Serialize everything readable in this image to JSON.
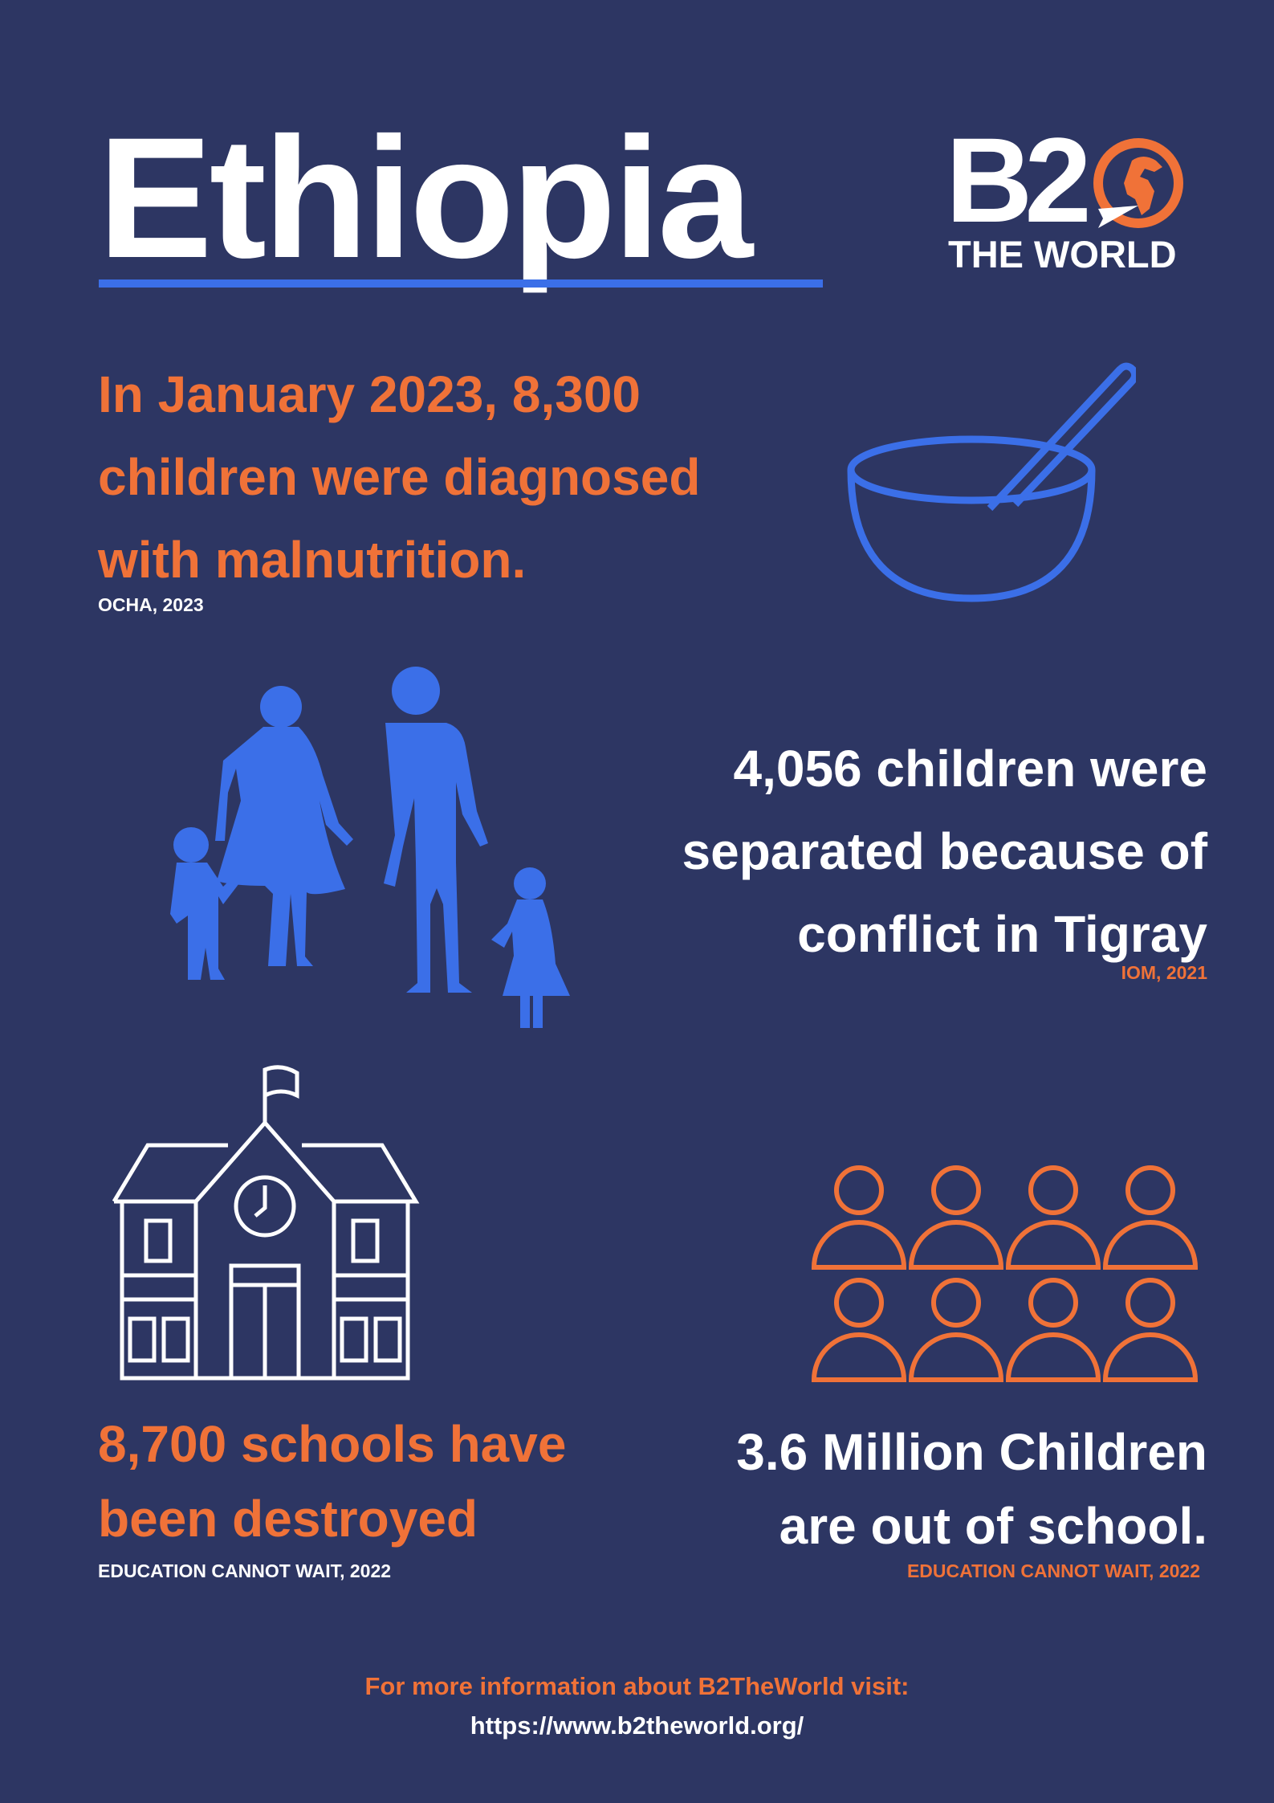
{
  "header": {
    "title": "Ethiopia",
    "logo_text": "B2 THE WORLD"
  },
  "colors": {
    "background": "#2d3663",
    "accent_orange": "#f07238",
    "accent_blue": "#3b6fe8",
    "text_white": "#ffffff"
  },
  "stats": [
    {
      "lines": [
        "In January 2023, 8,300",
        "children were diagnosed",
        "with malnutrition."
      ],
      "source": "OCHA, 2023",
      "icon": "bowl-icon"
    },
    {
      "lines": [
        "4,056 children were",
        "separated because of",
        "conflict in Tigray"
      ],
      "source": "IOM, 2021",
      "icon": "family-icon"
    },
    {
      "lines": [
        "8,700 schools have",
        "been destroyed"
      ],
      "source": "EDUCATION CANNOT WAIT, 2022",
      "icon": "school-icon"
    },
    {
      "lines": [
        "3.6 Million Children",
        "are out of school."
      ],
      "source": "EDUCATION CANNOT WAIT, 2022",
      "icon": "people-icon"
    }
  ],
  "footer": {
    "line1": "For more information about B2TheWorld visit:",
    "line2": "https://www.b2theworld.org/"
  }
}
